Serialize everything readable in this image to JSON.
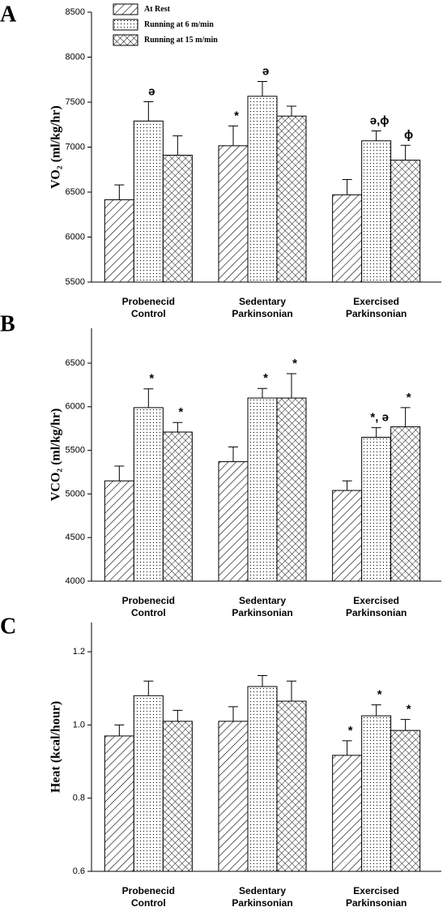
{
  "chart_data": [
    {
      "type": "bar",
      "panel_label": "A",
      "ylabel": "VO₂ (ml/kg/hr)",
      "categories": [
        [
          "Probenecid",
          "Control"
        ],
        [
          "Sedentary",
          "Parkinsonian"
        ],
        [
          "Exercised",
          "Parkinsonian"
        ]
      ],
      "legend": "top-left",
      "series": [
        {
          "name": "At Rest",
          "pattern": "hatch",
          "values": [
            6415,
            7015,
            6470
          ],
          "errors": [
            165,
            220,
            170
          ],
          "annotations": [
            null,
            "*",
            null
          ]
        },
        {
          "name": "Running at 6 m/min",
          "pattern": "dots",
          "values": [
            7290,
            7565,
            7070
          ],
          "errors": [
            215,
            165,
            110
          ],
          "annotations": [
            "ə",
            "ə",
            "ə,ϕ"
          ]
        },
        {
          "name": "Running at 15 m/min",
          "pattern": "cross",
          "values": [
            6910,
            7345,
            6855
          ],
          "errors": [
            215,
            110,
            165
          ],
          "annotations": [
            null,
            null,
            "ϕ"
          ]
        }
      ],
      "ylim": [
        5500,
        8500
      ],
      "yticks": [
        5500,
        6000,
        6500,
        7000,
        7500,
        8000,
        8500
      ]
    },
    {
      "type": "bar",
      "panel_label": "B",
      "ylabel": "VCO₂ (ml/kg/hr)",
      "categories": [
        [
          "Probenecid",
          "Control"
        ],
        [
          "Sedentary",
          "Parkinsonian"
        ],
        [
          "Exercised",
          "Parkinsonian"
        ]
      ],
      "series": [
        {
          "pattern": "hatch",
          "values": [
            5150,
            5370,
            5040
          ],
          "errors": [
            170,
            170,
            110
          ],
          "annotations": [
            null,
            null,
            null
          ]
        },
        {
          "pattern": "dots",
          "values": [
            5990,
            6100,
            5650
          ],
          "errors": [
            215,
            110,
            110
          ],
          "annotations": [
            "*",
            "*",
            "*, ə"
          ]
        },
        {
          "pattern": "cross",
          "values": [
            5710,
            6100,
            5770
          ],
          "errors": [
            110,
            280,
            220
          ],
          "annotations": [
            "*",
            "*",
            "*"
          ]
        }
      ],
      "ylim": [
        4000,
        6900
      ],
      "yticks": [
        4000,
        4500,
        5000,
        5500,
        6000,
        6500
      ]
    },
    {
      "type": "bar",
      "panel_label": "C",
      "ylabel": "Heat (kcal/hour)",
      "categories": [
        [
          "Probenecid",
          "Control"
        ],
        [
          "Sedentary",
          "Parkinsonian"
        ],
        [
          "Exercised",
          "Parkinsonian"
        ]
      ],
      "series": [
        {
          "pattern": "hatch",
          "values": [
            0.97,
            1.01,
            0.917
          ],
          "errors": [
            0.03,
            0.04,
            0.04
          ],
          "annotations": [
            null,
            null,
            "*"
          ]
        },
        {
          "pattern": "dots",
          "values": [
            1.08,
            1.105,
            1.025
          ],
          "errors": [
            0.04,
            0.03,
            0.03
          ],
          "annotations": [
            null,
            null,
            "*"
          ]
        },
        {
          "pattern": "cross",
          "values": [
            1.01,
            1.065,
            0.985
          ],
          "errors": [
            0.03,
            0.055,
            0.03
          ],
          "annotations": [
            null,
            null,
            "*"
          ]
        }
      ],
      "ylim": [
        0.6,
        1.28
      ],
      "yticks": [
        {
          "value": 0.6,
          "label": "0.6"
        },
        {
          "value": 0.8,
          "label": "0.8"
        },
        {
          "value": 1.0,
          "label": "1.0"
        },
        {
          "value": 1.2,
          "label": "1.2"
        }
      ]
    }
  ]
}
